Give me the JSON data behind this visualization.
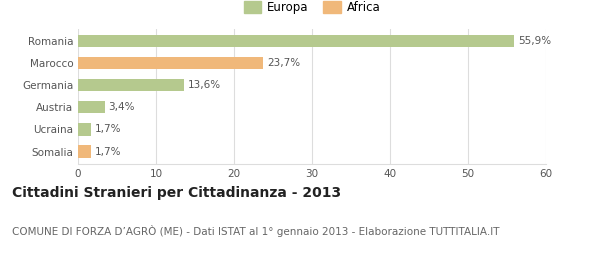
{
  "categories": [
    "Romania",
    "Marocco",
    "Germania",
    "Austria",
    "Ucraina",
    "Somalia"
  ],
  "values": [
    55.9,
    23.7,
    13.6,
    3.4,
    1.7,
    1.7
  ],
  "labels": [
    "55,9%",
    "23,7%",
    "13,6%",
    "3,4%",
    "1,7%",
    "1,7%"
  ],
  "bar_colors": [
    "#b5c98e",
    "#f0b87a",
    "#b5c98e",
    "#b5c98e",
    "#b5c98e",
    "#f0b87a"
  ],
  "legend_labels": [
    "Europa",
    "Africa"
  ],
  "legend_colors": [
    "#b5c98e",
    "#f0b87a"
  ],
  "title": "Cittadini Stranieri per Cittadinanza - 2013",
  "subtitle": "COMUNE DI FORZA D’AGRÒ (ME) - Dati ISTAT al 1° gennaio 2013 - Elaborazione TUTTITALIA.IT",
  "xlim": [
    0,
    60
  ],
  "xticks": [
    0,
    10,
    20,
    30,
    40,
    50,
    60
  ],
  "background_color": "#ffffff",
  "grid_color": "#dddddd",
  "title_fontsize": 10,
  "subtitle_fontsize": 7.5,
  "label_fontsize": 7.5,
  "tick_fontsize": 7.5,
  "legend_fontsize": 8.5
}
